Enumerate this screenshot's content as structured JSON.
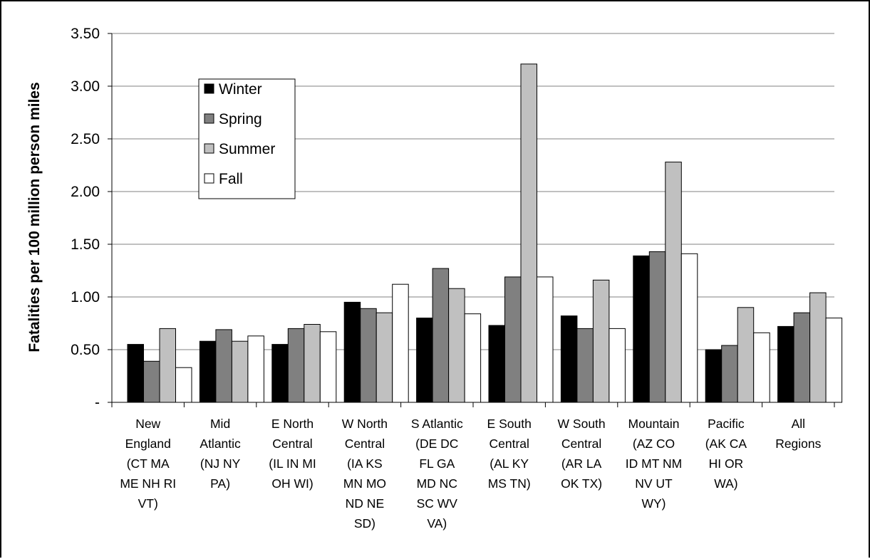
{
  "chart_data": {
    "type": "bar",
    "title": "",
    "xlabel": "",
    "ylabel": "Fatalities per 100 million person miles",
    "ylim": [
      0,
      3.5
    ],
    "yticks": [
      0,
      0.5,
      1.0,
      1.5,
      2.0,
      2.5,
      3.0,
      3.5
    ],
    "ytick_labels": [
      "-",
      "0.50",
      "1.00",
      "1.50",
      "2.00",
      "2.50",
      "3.00",
      "3.50"
    ],
    "grid": true,
    "legend_position": "top-left",
    "categories": [
      "New England (CT MA ME NH RI VT)",
      "Mid Atlantic (NJ NY PA)",
      "E North Central (IL IN MI OH WI)",
      "W North Central (IA KS MN MO ND NE SD)",
      "S Atlantic (DE DC FL GA MD NC SC WV VA)",
      "E South Central (AL KY MS TN)",
      "W South Central (AR LA OK TX)",
      "Mountain (AZ CO ID MT NM NV UT WY)",
      "Pacific (AK CA HI OR WA)",
      "All Regions"
    ],
    "category_lines": [
      [
        "New",
        "England",
        "(CT MA",
        "ME NH RI",
        "VT)"
      ],
      [
        "Mid",
        "Atlantic",
        "(NJ NY",
        "PA)"
      ],
      [
        "E North",
        "Central",
        "(IL IN MI",
        "OH WI)"
      ],
      [
        "W North",
        "Central",
        "(IA KS",
        "MN MO",
        "ND NE",
        "SD)"
      ],
      [
        "S Atlantic",
        "(DE DC",
        "FL GA",
        "MD NC",
        "SC WV",
        "VA)"
      ],
      [
        "E South",
        "Central",
        "(AL KY",
        "MS TN)"
      ],
      [
        "W South",
        "Central",
        "(AR LA",
        "OK TX)"
      ],
      [
        "Mountain",
        "(AZ CO",
        "ID MT NM",
        "NV UT",
        "WY)"
      ],
      [
        "Pacific",
        "(AK CA",
        "HI OR",
        "WA)"
      ],
      [
        "All",
        "Regions"
      ]
    ],
    "series": [
      {
        "name": "Winter",
        "color": "#000000",
        "values": [
          0.55,
          0.58,
          0.55,
          0.95,
          0.8,
          0.73,
          0.82,
          1.39,
          0.5,
          0.72
        ]
      },
      {
        "name": "Spring",
        "color": "#808080",
        "values": [
          0.39,
          0.69,
          0.7,
          0.89,
          1.27,
          1.19,
          0.7,
          1.43,
          0.54,
          0.85
        ]
      },
      {
        "name": "Summer",
        "color": "#c0c0c0",
        "values": [
          0.7,
          0.58,
          0.74,
          0.85,
          1.08,
          3.21,
          1.16,
          2.28,
          0.9,
          1.04
        ]
      },
      {
        "name": "Fall",
        "color": "#ffffff",
        "values": [
          0.33,
          0.63,
          0.67,
          1.12,
          0.84,
          1.19,
          0.7,
          1.41,
          0.66,
          0.8
        ]
      }
    ]
  }
}
